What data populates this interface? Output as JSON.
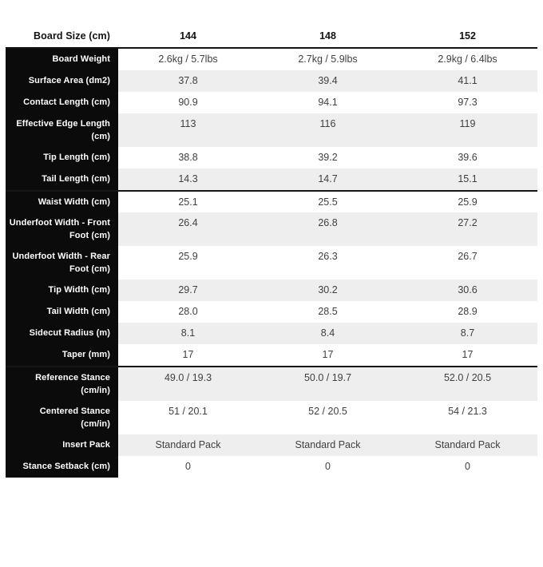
{
  "table": {
    "header": {
      "label": "Board Size (cm)",
      "sizes": [
        "144",
        "148",
        "152"
      ]
    },
    "rows": [
      {
        "label": "Board Weight",
        "values": [
          "2.6kg / 5.7lbs",
          "2.7kg / 5.9lbs",
          "2.9kg / 6.4lbs"
        ]
      },
      {
        "label": "Surface Area (dm2)",
        "values": [
          "37.8",
          "39.4",
          "41.1"
        ]
      },
      {
        "label": "Contact Length (cm)",
        "values": [
          "90.9",
          "94.1",
          "97.3"
        ]
      },
      {
        "label": "Effective Edge Length (cm)",
        "values": [
          "113",
          "116",
          "119"
        ]
      },
      {
        "label": "Tip Length (cm)",
        "values": [
          "38.8",
          "39.2",
          "39.6"
        ]
      },
      {
        "label": "Tail Length (cm)",
        "values": [
          "14.3",
          "14.7",
          "15.1"
        ]
      },
      {
        "label": "Waist Width (cm)",
        "values": [
          "25.1",
          "25.5",
          "25.9"
        ]
      },
      {
        "label": "Underfoot Width - Front Foot (cm)",
        "values": [
          "26.4",
          "26.8",
          "27.2"
        ]
      },
      {
        "label": "Underfoot Width - Rear Foot (cm)",
        "values": [
          "25.9",
          "26.3",
          "26.7"
        ]
      },
      {
        "label": "Tip Width (cm)",
        "values": [
          "29.7",
          "30.2",
          "30.6"
        ]
      },
      {
        "label": "Tail Width (cm)",
        "values": [
          "28.0",
          "28.5",
          "28.9"
        ]
      },
      {
        "label": "Sidecut Radius (m)",
        "values": [
          "8.1",
          "8.4",
          "8.7"
        ]
      },
      {
        "label": "Taper (mm)",
        "values": [
          "17",
          "17",
          "17"
        ]
      },
      {
        "label": "Reference Stance (cm/in)",
        "values": [
          "49.0 / 19.3",
          "50.0 / 19.7",
          "52.0 / 20.5"
        ]
      },
      {
        "label": "Centered Stance (cm/in)",
        "values": [
          "51 / 20.1",
          "52 / 20.5",
          "54 / 21.3"
        ]
      },
      {
        "label": "Insert Pack",
        "values": [
          "Standard Pack",
          "Standard Pack",
          "Standard Pack"
        ]
      },
      {
        "label": "Stance Setback (cm)",
        "values": [
          "0",
          "0",
          "0"
        ]
      }
    ],
    "colors": {
      "label_bg": "#0b0b0b",
      "alt_row_bg": "#eeeeee",
      "divider": "#161616",
      "value_text": "#3f3f3f"
    }
  }
}
